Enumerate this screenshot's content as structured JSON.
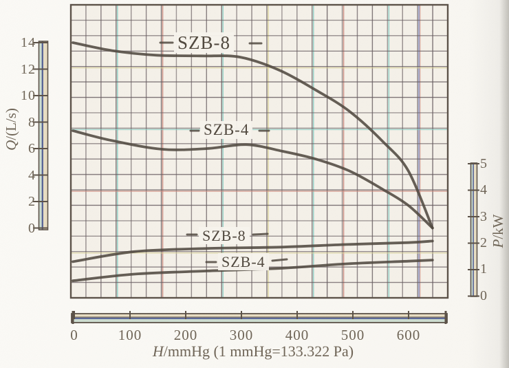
{
  "chart_data": {
    "type": "line",
    "title": "",
    "grid": true,
    "legend_position": "inline-labels",
    "x_axis": {
      "variable": "H",
      "unit": "/mmHg (1 mmHg=133.322 Pa)",
      "ticks": [
        "0",
        "100",
        "200",
        "300",
        "400",
        "500",
        "600"
      ],
      "range": [
        0,
        665
      ]
    },
    "y_axis_left": {
      "variable": "Q",
      "unit": "/(L/s)",
      "ticks": [
        "14",
        "12",
        "10",
        "8",
        "6",
        "4",
        "2",
        "0"
      ],
      "range": [
        0,
        14
      ]
    },
    "y_axis_right": {
      "variable": "P",
      "unit": "/kW",
      "ticks": [
        "5",
        "4",
        "3",
        "2",
        "1",
        "0"
      ],
      "range": [
        0,
        5
      ]
    },
    "series": [
      {
        "label": "SZB-8",
        "quantity": "Q",
        "axis": "left",
        "points": [
          [
            0,
            14.0
          ],
          [
            70,
            13.4
          ],
          [
            150,
            13.05
          ],
          [
            230,
            13.0
          ],
          [
            300,
            12.9
          ],
          [
            370,
            11.9
          ],
          [
            435,
            10.4
          ],
          [
            495,
            8.8
          ],
          [
            555,
            6.5
          ],
          [
            600,
            4.3
          ],
          [
            643,
            0
          ]
        ]
      },
      {
        "label": "SZB-4",
        "quantity": "Q",
        "axis": "left",
        "points": [
          [
            0,
            7.35
          ],
          [
            70,
            6.6
          ],
          [
            160,
            5.95
          ],
          [
            240,
            6.0
          ],
          [
            310,
            6.3
          ],
          [
            375,
            5.8
          ],
          [
            435,
            5.2
          ],
          [
            495,
            4.3
          ],
          [
            555,
            2.9
          ],
          [
            600,
            1.7
          ],
          [
            643,
            0
          ]
        ]
      },
      {
        "label": "SZB-8",
        "quantity": "P",
        "axis": "right",
        "points": [
          [
            0,
            1.3
          ],
          [
            110,
            1.68
          ],
          [
            240,
            1.8
          ],
          [
            370,
            1.85
          ],
          [
            490,
            1.95
          ],
          [
            600,
            2.02
          ],
          [
            643,
            2.08
          ]
        ]
      },
      {
        "label": "SZB-4",
        "quantity": "P",
        "axis": "right",
        "points": [
          [
            0,
            0.58
          ],
          [
            110,
            0.83
          ],
          [
            240,
            0.95
          ],
          [
            370,
            1.05
          ],
          [
            490,
            1.22
          ],
          [
            600,
            1.32
          ],
          [
            643,
            1.36
          ]
        ]
      }
    ]
  },
  "colors": {
    "curve": "#4f473e",
    "grid": "#655a5e",
    "grid_accent_cyan": "#85cdc3",
    "grid_accent_red": "#c98176",
    "grid_accent_yellow": "#dcd497",
    "grid_accent_blue": "#7a86c0",
    "paper": "#f5f1e9",
    "ink": "#6f6557",
    "ruler_green": "#cdddd0",
    "ruler_blue": "#4d5a92",
    "ruler_cream": "#e8ddc2",
    "frame": "#5a5046"
  }
}
